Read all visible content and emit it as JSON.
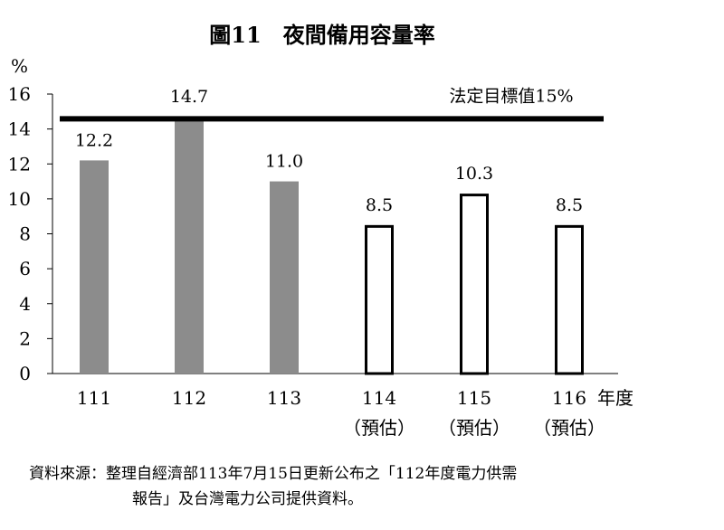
{
  "chart_data": {
    "type": "bar",
    "title": "圖11　夜間備用容量率",
    "ylabel": "%",
    "xlabel": "年度",
    "ylim": [
      0,
      16
    ],
    "yticks": [
      "0",
      "2",
      "4",
      "6",
      "8",
      "10",
      "12",
      "14",
      "16"
    ],
    "categories": [
      {
        "label": "111",
        "sub": ""
      },
      {
        "label": "112",
        "sub": ""
      },
      {
        "label": "113",
        "sub": ""
      },
      {
        "label": "114",
        "sub": "（預估）"
      },
      {
        "label": "115",
        "sub": "（預估）"
      },
      {
        "label": "116",
        "sub": "（預估）"
      }
    ],
    "values": [
      12.2,
      14.7,
      11.0,
      8.5,
      10.3,
      8.5
    ],
    "value_labels": [
      "12.2",
      "14.7",
      "11.0",
      "8.5",
      "10.3",
      "8.5"
    ],
    "bar_styles": [
      "filled",
      "filled",
      "filled",
      "outline",
      "outline",
      "outline"
    ],
    "reference_line": {
      "value": 15,
      "label": "法定目標值15%"
    },
    "colors": {
      "filled": "#8c8c8c",
      "outline": "#000000",
      "reference": "#000000"
    }
  },
  "source_note": {
    "line1": "資料來源：整理自經濟部113年7月15日更新公布之「112年度電力供需",
    "line2": "報告」及台灣電力公司提供資料。"
  }
}
